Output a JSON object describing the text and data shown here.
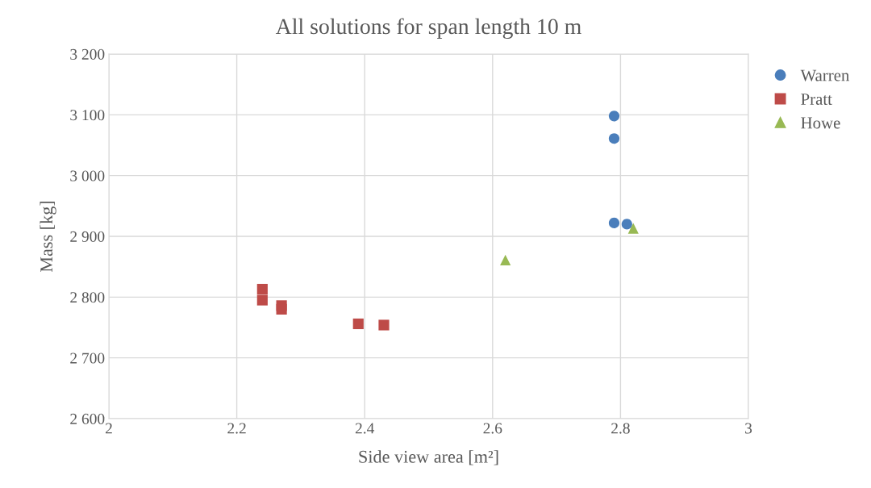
{
  "chart_data": {
    "type": "scatter",
    "title": "All solutions for span length 10 m",
    "xlabel": "Side view area [m²]",
    "ylabel": "Mass [kg]",
    "series": [
      {
        "name": "Warren",
        "color": "#4a7ebb",
        "marker": "circle",
        "x": [
          2.79,
          2.79,
          2.79,
          2.81
        ],
        "values": [
          3098,
          3061,
          2922,
          2920
        ]
      },
      {
        "name": "Pratt",
        "color": "#be4b48",
        "marker": "square",
        "x": [
          2.24,
          2.24,
          2.27,
          2.27,
          2.39,
          2.43
        ],
        "values": [
          2813,
          2795,
          2786,
          2780,
          2756,
          2754
        ]
      },
      {
        "name": "Howe",
        "color": "#98b954",
        "marker": "triangle",
        "x": [
          2.62,
          2.82
        ],
        "values": [
          2861,
          2913
        ]
      }
    ],
    "xlim": [
      2,
      3
    ],
    "xticks": [
      {
        "value": 2,
        "label": "2"
      },
      {
        "value": 2.2,
        "label": "2.2"
      },
      {
        "value": 2.4,
        "label": "2.4"
      },
      {
        "value": 2.6,
        "label": "2.6"
      },
      {
        "value": 2.8,
        "label": "2.8"
      },
      {
        "value": 3,
        "label": "3"
      }
    ],
    "ylim": [
      2600,
      3200
    ],
    "yticks": [
      {
        "value": 2600,
        "label": "2 600"
      },
      {
        "value": 2700,
        "label": "2 700"
      },
      {
        "value": 2800,
        "label": "2 800"
      },
      {
        "value": 2900,
        "label": "2 900"
      },
      {
        "value": 3000,
        "label": "3 000"
      },
      {
        "value": 3100,
        "label": "3 100"
      },
      {
        "value": 3200,
        "label": "3 200"
      }
    ],
    "grid": true,
    "legend": "right"
  }
}
